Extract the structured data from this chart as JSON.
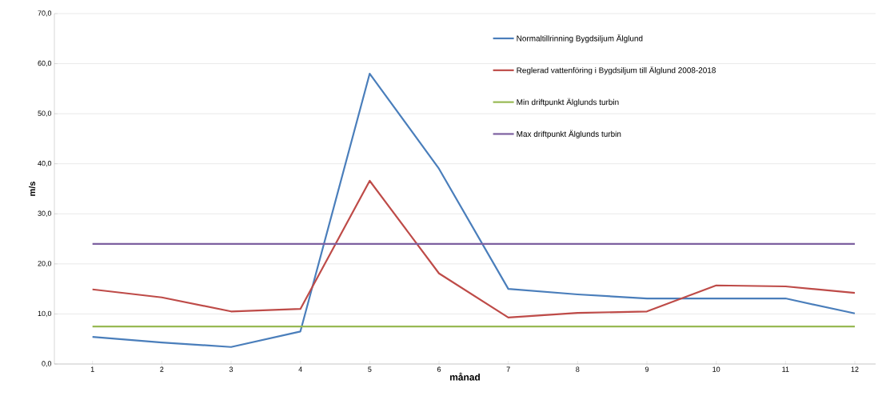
{
  "chart_data": {
    "type": "line",
    "xlabel": "månad",
    "ylabel": "m/s",
    "categories": [
      "1",
      "2",
      "3",
      "4",
      "5",
      "6",
      "7",
      "8",
      "9",
      "10",
      "11",
      "12"
    ],
    "series": [
      {
        "name": "Normaltillrinning Bygdsiljum Älglund",
        "color": "#4a7ebb",
        "values": [
          5.4,
          4.3,
          3.4,
          6.5,
          58.0,
          39.0,
          15.0,
          13.9,
          13.1,
          13.1,
          13.1,
          10.1
        ]
      },
      {
        "name": "Reglerad vattenföring i Bygdsiljum till Älglund 2008-2018",
        "color": "#be4b48",
        "values": [
          14.9,
          13.3,
          10.5,
          11.0,
          36.6,
          18.1,
          9.3,
          10.2,
          10.5,
          15.7,
          15.5,
          14.2
        ]
      },
      {
        "name": "Min driftpunkt Älglunds turbin",
        "color": "#98b954",
        "values": [
          7.5,
          7.5,
          7.5,
          7.5,
          7.5,
          7.5,
          7.5,
          7.5,
          7.5,
          7.5,
          7.5,
          7.5
        ]
      },
      {
        "name": "Max driftpunkt Älglunds turbin",
        "color": "#7d60a0",
        "values": [
          24.0,
          24.0,
          24.0,
          24.0,
          24.0,
          24.0,
          24.0,
          24.0,
          24.0,
          24.0,
          24.0,
          24.0
        ]
      }
    ],
    "ylim": [
      0,
      70
    ],
    "yticks": [
      {
        "value": 0,
        "label": "0,0"
      },
      {
        "value": 10,
        "label": "10,0"
      },
      {
        "value": 20,
        "label": "20,0"
      },
      {
        "value": 30,
        "label": "30,0"
      },
      {
        "value": 40,
        "label": "40,0"
      },
      {
        "value": 50,
        "label": "50,0"
      },
      {
        "value": 60,
        "label": "60,0"
      },
      {
        "value": 70,
        "label": "70,0"
      }
    ],
    "grid": "y",
    "legend": "top right",
    "marker": "none",
    "line_style": "solid"
  }
}
